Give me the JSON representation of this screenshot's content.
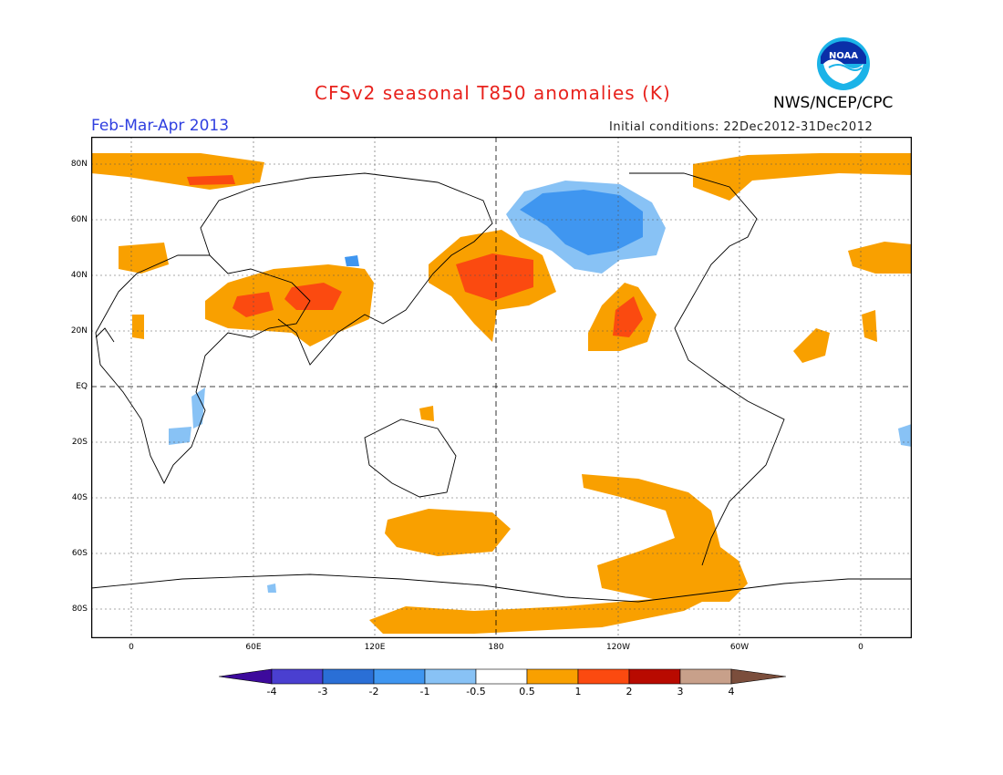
{
  "title": "CFSv2 seasonal T850 anomalies (K)",
  "season": "Feb-Mar-Apr 2013",
  "initial_conditions": "Initial conditions: 22Dec2012-31Dec2012",
  "agency": "NWS/NCEP/CPC",
  "logo_icon": "noaa-logo-icon",
  "logo_text": "NOAA",
  "lat_labels": [
    "80N",
    "60N",
    "40N",
    "20N",
    "EQ",
    "20S",
    "40S",
    "60S",
    "80S"
  ],
  "lon_labels": [
    "0",
    "60E",
    "120E",
    "180",
    "120W",
    "60W",
    "0"
  ],
  "colorbar": {
    "labels": [
      "-4",
      "-3",
      "-2",
      "-1",
      "-0.5",
      "0.5",
      "1",
      "2",
      "3",
      "4"
    ],
    "colors": [
      "#3d0a9c",
      "#4a3fd0",
      "#2a6fd6",
      "#3f96f0",
      "#88c2f5",
      "#ffffff",
      "#f9a000",
      "#fb4a10",
      "#b80a00",
      "#c8a08a",
      "#7b4e3c"
    ]
  },
  "colors": {
    "title": "#e8221d",
    "season": "#2f3fe0",
    "warm_light": "#f9a000",
    "warm_mid": "#fb4a10",
    "cool_light": "#88c2f5",
    "cool_mid": "#3f96f0"
  }
}
